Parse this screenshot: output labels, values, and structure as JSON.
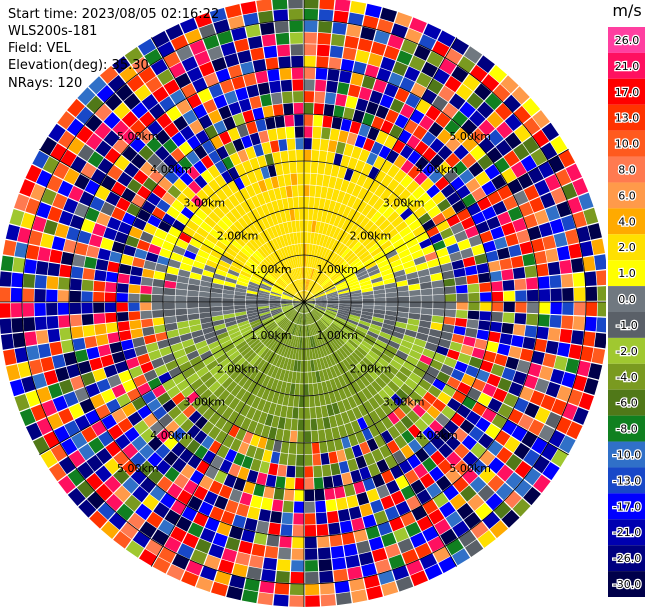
{
  "header": {
    "start_time": "Start time: 2023/08/05 02:16:22",
    "instrument": "WLS200s-181",
    "field": "Field: VEL",
    "elevation": "Elevation(deg): 35.30",
    "nrays": "NRays: 120"
  },
  "chart_data": {
    "type": "heatmap",
    "projection": "polar",
    "field": "VEL",
    "units": "m/s",
    "n_rays": 120,
    "elevation_deg": 35.3,
    "range_ring_labels": [
      "1.00km",
      "2.00km",
      "3.00km",
      "4.00km",
      "5.00km"
    ],
    "range_rings_km": [
      1,
      2,
      3,
      4,
      5,
      6
    ],
    "max_range_km": 6.5,
    "colorbar": {
      "title": "m/s",
      "tick_labels": [
        "26.0",
        "21.0",
        "17.0",
        "13.0",
        "10.0",
        "8.0",
        "6.0",
        "4.0",
        "2.0",
        "1.0",
        "0.0",
        "-1.0",
        "-2.0",
        "-4.0",
        "-6.0",
        "-8.0",
        "-10.0",
        "-13.0",
        "-17.0",
        "-21.0",
        "-26.0",
        "-30.0"
      ],
      "colors": [
        "#ff3fa0",
        "#ff1060",
        "#ff0000",
        "#ff3300",
        "#ff5a1e",
        "#ff7a50",
        "#ff9a4a",
        "#ffaa00",
        "#ffe000",
        "#ffff00",
        "#707880",
        "#5a6068",
        "#a0c830",
        "#7a9a20",
        "#507818",
        "#108020",
        "#3070c8",
        "#1848c8",
        "#0000ff",
        "#0000b0",
        "#000080",
        "#00004a"
      ]
    },
    "regions": [
      {
        "name": "near-range positive (toward top)",
        "velocity_ms": [
          2.0,
          6.0
        ],
        "range_km": [
          0,
          3.2
        ]
      },
      {
        "name": "near-range negative (toward bottom)",
        "velocity_ms": [
          -6.0,
          -1.0
        ],
        "range_km": [
          0,
          3.5
        ]
      },
      {
        "name": "zero-velocity band (left-right)",
        "velocity_ms": [
          -1.0,
          1.0
        ],
        "range_km": [
          0,
          6
        ]
      },
      {
        "name": "noisy far range",
        "velocity_ms": [
          -30.0,
          26.0
        ],
        "range_km": [
          3.5,
          6.5
        ]
      }
    ]
  }
}
